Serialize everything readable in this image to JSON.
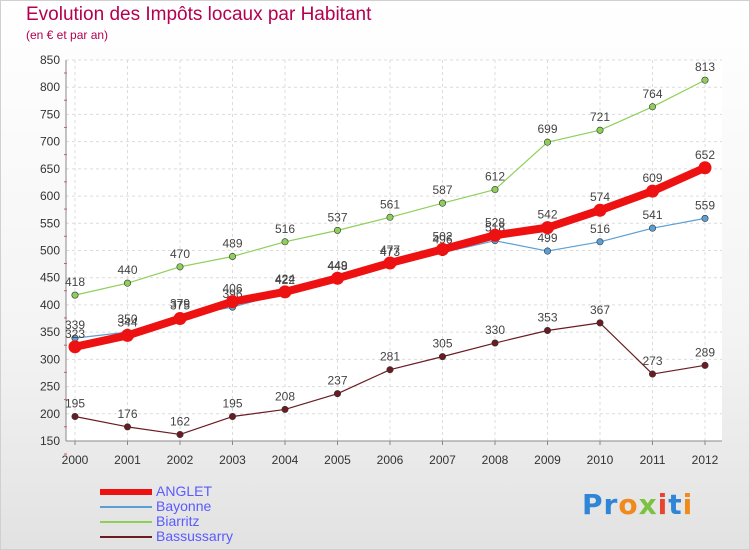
{
  "chart_data": {
    "type": "line",
    "title": "Evolution des Impôts locaux par Habitant",
    "subtitle": "(en € et par an)",
    "xlabel": "",
    "ylabel": "",
    "ylim": [
      150,
      850
    ],
    "y_ticks": [
      150,
      200,
      250,
      300,
      350,
      400,
      450,
      500,
      550,
      600,
      650,
      700,
      750,
      800,
      850
    ],
    "categories": [
      "2000",
      "2001",
      "2002",
      "2003",
      "2004",
      "2005",
      "2006",
      "2007",
      "2008",
      "2009",
      "2010",
      "2011",
      "2012"
    ],
    "series": [
      {
        "name": "Bassussarry",
        "color": "#6b1c22",
        "values": [
          195,
          176,
          162,
          195,
          208,
          237,
          281,
          305,
          330,
          353,
          367,
          273,
          289
        ]
      },
      {
        "name": "Biarritz",
        "color": "#8ecf5a",
        "values": [
          418,
          440,
          470,
          489,
          516,
          537,
          561,
          587,
          612,
          699,
          721,
          764,
          813
        ]
      },
      {
        "name": "Bayonne",
        "color": "#5b9fd4",
        "values": [
          339,
          350,
          379,
          396,
          422,
          448,
          473,
          496,
          518,
          499,
          516,
          541,
          559
        ]
      },
      {
        "name": "ANGLET",
        "color": "#ee1111",
        "values": [
          323,
          344,
          375,
          406,
          424,
          449,
          477,
          502,
          528,
          542,
          574,
          609,
          652
        ]
      }
    ],
    "legend_position": "bottom-left"
  },
  "legend": [
    "ANGLET",
    "Bayonne",
    "Biarritz",
    "Bassussarry"
  ],
  "logo": {
    "text": "Proxiti",
    "letters": [
      "P",
      "r",
      "o",
      "x",
      "i",
      "t",
      "i"
    ],
    "colors": [
      "#2f86d6",
      "#2f86d6",
      "#f08a1c",
      "#7cc242",
      "#e8452f",
      "#2f86d6",
      "#f08a1c"
    ]
  }
}
